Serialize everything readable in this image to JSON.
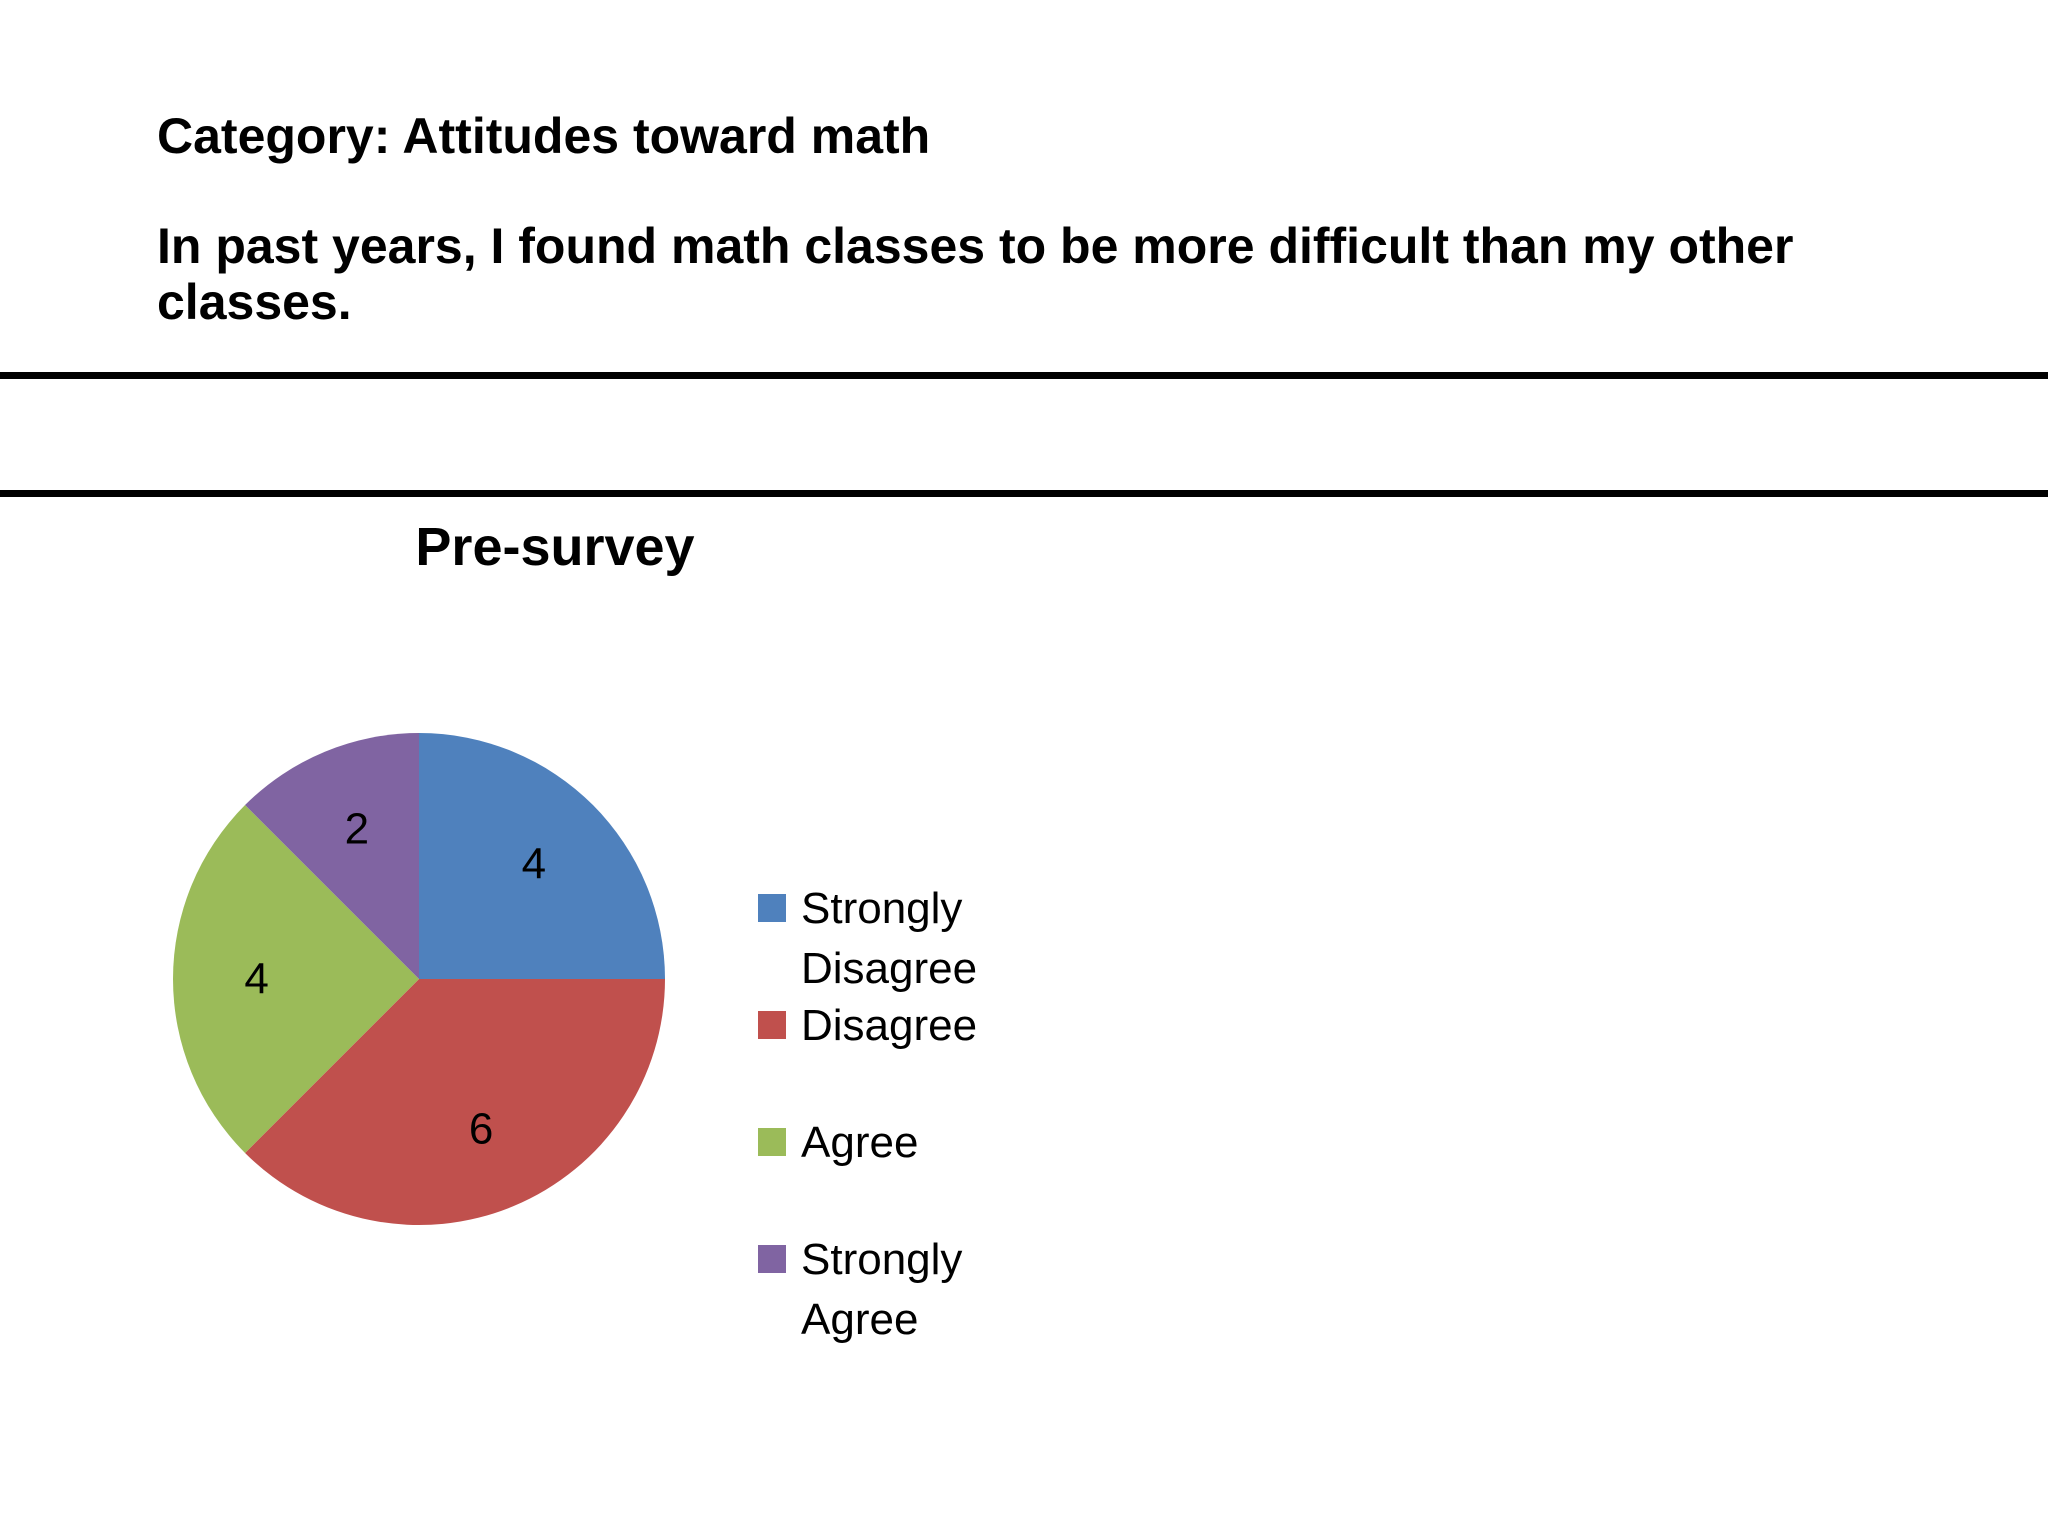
{
  "header": {
    "category": "Category: Attitudes toward math",
    "question": "In past years, I found math classes to be more difficult than my other classes."
  },
  "chart_data": {
    "type": "pie",
    "title": "Pre-survey",
    "categories": [
      "Strongly Disagree",
      "Disagree",
      "Agree",
      "Strongly Agree"
    ],
    "values": [
      4,
      6,
      4,
      2
    ],
    "colors": [
      "#4F81BD",
      "#C0504D",
      "#9BBB59",
      "#8064A2"
    ],
    "data_labels": [
      "4",
      "6",
      "4",
      "2"
    ],
    "legend_position": "right"
  }
}
